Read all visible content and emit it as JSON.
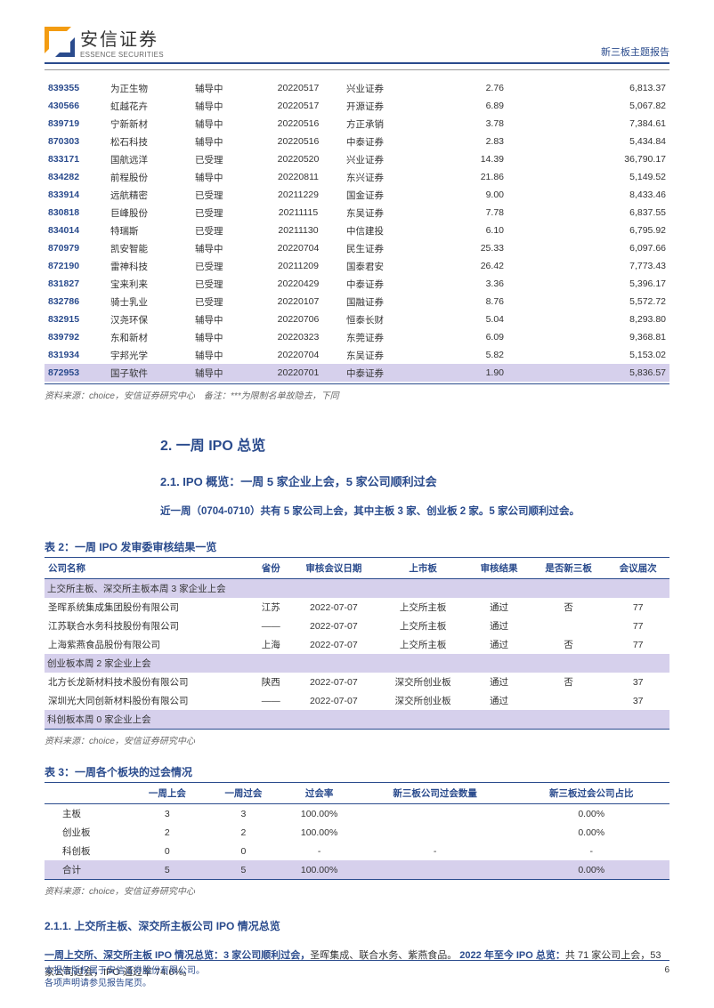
{
  "header": {
    "logo_cn": "安信证券",
    "logo_en": "ESSENCE SECURITIES",
    "right": "新三板主题报告"
  },
  "table1": {
    "rows": [
      {
        "code": "839355",
        "name": "为正生物",
        "status": "辅导中",
        "date": "20220517",
        "broker": "兴业证券",
        "v1": "2.76",
        "v2": "6,813.37",
        "hl": false
      },
      {
        "code": "430566",
        "name": "虹越花卉",
        "status": "辅导中",
        "date": "20220517",
        "broker": "开源证券",
        "v1": "6.89",
        "v2": "5,067.82",
        "hl": false
      },
      {
        "code": "839719",
        "name": "宁新新材",
        "status": "辅导中",
        "date": "20220516",
        "broker": "方正承销",
        "v1": "3.78",
        "v2": "7,384.61",
        "hl": false
      },
      {
        "code": "870303",
        "name": "松石科技",
        "status": "辅导中",
        "date": "20220516",
        "broker": "中泰证券",
        "v1": "2.83",
        "v2": "5,434.84",
        "hl": false
      },
      {
        "code": "833171",
        "name": "国航远洋",
        "status": "已受理",
        "date": "20220520",
        "broker": "兴业证券",
        "v1": "14.39",
        "v2": "36,790.17",
        "hl": false
      },
      {
        "code": "834282",
        "name": "前程股份",
        "status": "辅导中",
        "date": "20220811",
        "broker": "东兴证券",
        "v1": "21.86",
        "v2": "5,149.52",
        "hl": false
      },
      {
        "code": "833914",
        "name": "远航精密",
        "status": "已受理",
        "date": "20211229",
        "broker": "国金证券",
        "v1": "9.00",
        "v2": "8,433.46",
        "hl": false
      },
      {
        "code": "830818",
        "name": "巨峰股份",
        "status": "已受理",
        "date": "20211115",
        "broker": "东吴证券",
        "v1": "7.78",
        "v2": "6,837.55",
        "hl": false
      },
      {
        "code": "834014",
        "name": "特瑞斯",
        "status": "已受理",
        "date": "20211130",
        "broker": "中信建投",
        "v1": "6.10",
        "v2": "6,795.92",
        "hl": false
      },
      {
        "code": "870979",
        "name": "凯安智能",
        "status": "辅导中",
        "date": "20220704",
        "broker": "民生证券",
        "v1": "25.33",
        "v2": "6,097.66",
        "hl": false
      },
      {
        "code": "872190",
        "name": "雷神科技",
        "status": "已受理",
        "date": "20211209",
        "broker": "国泰君安",
        "v1": "26.42",
        "v2": "7,773.43",
        "hl": false
      },
      {
        "code": "831827",
        "name": "宝来利来",
        "status": "已受理",
        "date": "20220429",
        "broker": "中泰证券",
        "v1": "3.36",
        "v2": "5,396.17",
        "hl": false
      },
      {
        "code": "832786",
        "name": "骑士乳业",
        "status": "已受理",
        "date": "20220107",
        "broker": "国融证券",
        "v1": "8.76",
        "v2": "5,572.72",
        "hl": false
      },
      {
        "code": "832915",
        "name": "汉尧环保",
        "status": "辅导中",
        "date": "20220706",
        "broker": "恒泰长财",
        "v1": "5.04",
        "v2": "8,293.80",
        "hl": false
      },
      {
        "code": "839792",
        "name": "东和新材",
        "status": "辅导中",
        "date": "20220323",
        "broker": "东莞证券",
        "v1": "6.09",
        "v2": "9,368.81",
        "hl": false
      },
      {
        "code": "831934",
        "name": "宇邦光学",
        "status": "辅导中",
        "date": "20220704",
        "broker": "东吴证券",
        "v1": "5.82",
        "v2": "5,153.02",
        "hl": false
      },
      {
        "code": "872953",
        "name": "国子软件",
        "status": "辅导中",
        "date": "20220701",
        "broker": "中泰证券",
        "v1": "1.90",
        "v2": "5,836.57",
        "hl": true
      }
    ],
    "source": "资料来源：choice，安信证券研究中心　备注：***为限制名单故隐去，下同"
  },
  "section2": {
    "title": "2. 一周 IPO 总览",
    "sub21": "2.1. IPO 概览：一周 5 家企业上会，5 家公司顺利过会",
    "body": "近一周（0704-0710）共有 5 家公司上会，其中主板 3 家、创业板 2 家。5 家公司顺利过会。"
  },
  "table2": {
    "caption": "表 2：一周 IPO 发审委审核结果一览",
    "headers": [
      "公司名称",
      "省份",
      "审核会议日期",
      "上市板",
      "审核结果",
      "是否新三板",
      "会议届次"
    ],
    "groups": [
      {
        "label": "上交所主板、深交所主板本周 3 家企业上会",
        "rows": [
          {
            "c": [
              "圣晖系统集成集团股份有限公司",
              "江苏",
              "2022-07-07",
              "上交所主板",
              "通过",
              "否",
              "77"
            ]
          },
          {
            "c": [
              "江苏联合水务科技股份有限公司",
              "——",
              "2022-07-07",
              "上交所主板",
              "通过",
              "",
              "77"
            ]
          },
          {
            "c": [
              "上海紫燕食品股份有限公司",
              "上海",
              "2022-07-07",
              "上交所主板",
              "通过",
              "否",
              "77"
            ]
          }
        ]
      },
      {
        "label": "创业板本周 2 家企业上会",
        "rows": [
          {
            "c": [
              "北方长龙新材料技术股份有限公司",
              "陕西",
              "2022-07-07",
              "深交所创业板",
              "通过",
              "否",
              "37"
            ]
          },
          {
            "c": [
              "深圳光大同创新材料股份有限公司",
              "——",
              "2022-07-07",
              "深交所创业板",
              "通过",
              "",
              "37"
            ]
          }
        ]
      },
      {
        "label": "科创板本周 0 家企业上会",
        "rows": []
      }
    ],
    "source": "资料来源：choice，安信证券研究中心"
  },
  "table3": {
    "caption": "表 3：一周各个板块的过会情况",
    "headers": [
      "",
      "一周上会",
      "一周过会",
      "过会率",
      "新三板公司过会数量",
      "新三板过会公司占比"
    ],
    "rows": [
      {
        "c": [
          "主板",
          "3",
          "3",
          "100.00%",
          "",
          "0.00%"
        ],
        "total": false
      },
      {
        "c": [
          "创业板",
          "2",
          "2",
          "100.00%",
          "",
          "0.00%"
        ],
        "total": false
      },
      {
        "c": [
          "科创板",
          "0",
          "0",
          "-",
          "-",
          "-"
        ],
        "total": false
      },
      {
        "c": [
          "合计",
          "5",
          "5",
          "100.00%",
          "",
          "0.00%"
        ],
        "total": true
      }
    ],
    "source": "资料来源：choice，安信证券研究中心"
  },
  "sub211": {
    "title": "2.1.1. 上交所主板、深交所主板公司 IPO 情况总览",
    "b1": "一周上交所、深交所主板 IPO 情况总览：3 家公司顺利过会，",
    "t1": "圣晖集成、联合水务、紫燕食品。",
    "b2": "2022 年至今 IPO 总览：",
    "t2": "共 71 家公司上会，53 家公司过会，IPO 通过率 74.6%。"
  },
  "footer": {
    "l1": "本报告版权属于安信证券股份有限公司。",
    "l2": "各项声明请参见报告尾页。",
    "page": "6"
  }
}
